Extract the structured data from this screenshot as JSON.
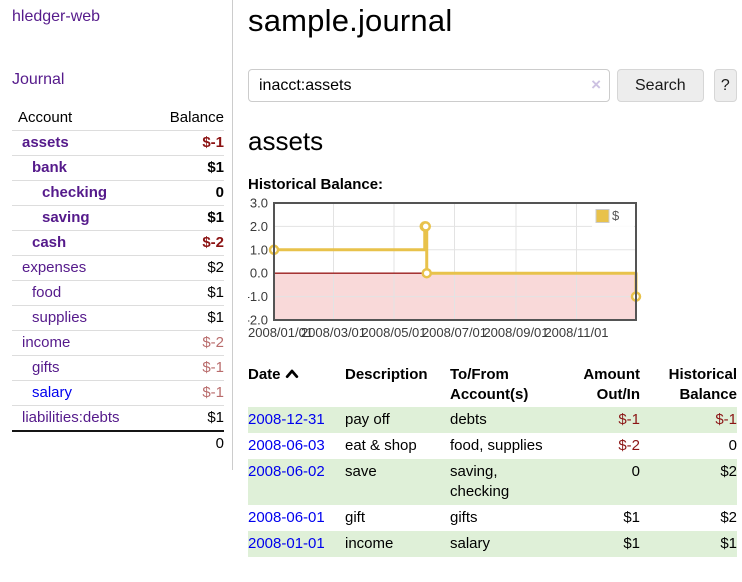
{
  "app": {
    "brand": "hledger-web"
  },
  "sidebar": {
    "journal_link": "Journal",
    "accounts_table": {
      "headers": {
        "account": "Account",
        "balance": "Balance"
      },
      "rows": [
        {
          "name": "assets",
          "depth": 1,
          "balance": "$-1",
          "bold": true,
          "balance_style": "neg-strong",
          "link_color": "purple"
        },
        {
          "name": "bank",
          "depth": 2,
          "balance": "$1",
          "bold": true,
          "balance_style": "pos",
          "link_color": "purple"
        },
        {
          "name": "checking",
          "depth": 3,
          "balance": "0",
          "bold": true,
          "balance_style": "pos",
          "link_color": "purple"
        },
        {
          "name": "saving",
          "depth": 3,
          "balance": "$1",
          "bold": true,
          "balance_style": "pos",
          "link_color": "purple"
        },
        {
          "name": "cash",
          "depth": 2,
          "balance": "$-2",
          "bold": true,
          "balance_style": "neg-strong",
          "link_color": "purple"
        },
        {
          "name": "expenses",
          "depth": 1,
          "balance": "$2",
          "bold": false,
          "balance_style": "pos",
          "link_color": "purple"
        },
        {
          "name": "food",
          "depth": 2,
          "balance": "$1",
          "bold": false,
          "balance_style": "pos",
          "link_color": "purple"
        },
        {
          "name": "supplies",
          "depth": 2,
          "balance": "$1",
          "bold": false,
          "balance_style": "pos",
          "link_color": "purple"
        },
        {
          "name": "income",
          "depth": 1,
          "balance": "$-2",
          "bold": false,
          "balance_style": "neg-dim",
          "link_color": "purple"
        },
        {
          "name": "gifts",
          "depth": 2,
          "balance": "$-1",
          "bold": false,
          "balance_style": "neg-dim",
          "link_color": "purple"
        },
        {
          "name": "salary",
          "depth": 2,
          "balance": "$-1",
          "bold": false,
          "balance_style": "neg-dim",
          "link_color": "blue"
        },
        {
          "name": "liabilities:debts",
          "depth": 1,
          "balance": "$1",
          "bold": false,
          "balance_style": "pos",
          "link_color": "purple"
        }
      ],
      "total": "0"
    }
  },
  "header": {
    "title": "sample.journal"
  },
  "search": {
    "value": "inacct:assets",
    "clear_icon": "×",
    "button": "Search",
    "help_button": "?"
  },
  "account_page": {
    "heading": "assets",
    "chart_label": "Historical Balance:"
  },
  "icons": {
    "clear_search": "x-mark",
    "sort_ascending": "chevron-up"
  },
  "chart_data": {
    "type": "line",
    "title": "Historical Balance:",
    "steps": true,
    "series": [
      {
        "name": "$",
        "color": "#e8c24b",
        "points": [
          [
            "2008-01-01",
            1
          ],
          [
            "2008-06-01",
            2
          ],
          [
            "2008-06-02",
            2
          ],
          [
            "2008-06-03",
            0
          ],
          [
            "2008-12-31",
            -1
          ]
        ]
      }
    ],
    "x_ticks": [
      {
        "date": "2008-01-01",
        "label": "2008/01/01"
      },
      {
        "date": "2008-03-01",
        "label": "2008/03/01"
      },
      {
        "date": "2008-05-01",
        "label": "2008/05/01"
      },
      {
        "date": "2008-07-01",
        "label": "2008/07/01"
      },
      {
        "date": "2008-09-01",
        "label": "2008/09/01"
      },
      {
        "date": "2008-11-01",
        "label": "2008/11/01"
      }
    ],
    "y_ticks": [
      {
        "v": 3,
        "label": "3.0"
      },
      {
        "v": 2,
        "label": "2.0"
      },
      {
        "v": 1,
        "label": "1.0"
      },
      {
        "v": 0,
        "label": "0.0"
      },
      {
        "v": -1,
        "label": "-1.0"
      },
      {
        "v": -2,
        "label": "-2.0"
      }
    ],
    "ylim": [
      -2,
      3
    ],
    "xrange": [
      "2008-01-01",
      "2008-12-31"
    ],
    "grid": true,
    "legend": {
      "label": "$",
      "position": "top-right"
    },
    "zero_line_color": "#9b1c1c",
    "negative_fill": "#f9d9d9"
  },
  "register_table": {
    "headers": {
      "date": "Date",
      "description": "Description",
      "accounts": "To/From Account(s)",
      "amount": "Amount Out/In",
      "balance": "Historical Balance"
    },
    "rows": [
      {
        "date": "2008-12-31",
        "description": "pay off",
        "accounts": "debts",
        "amount": "$-1",
        "amount_style": "neg",
        "balance": "$-1",
        "balance_style": "neg"
      },
      {
        "date": "2008-06-03",
        "description": "eat & shop",
        "accounts": "food, supplies",
        "amount": "$-2",
        "amount_style": "neg",
        "balance": "0",
        "balance_style": "pos"
      },
      {
        "date": "2008-06-02",
        "description": "save",
        "accounts": "saving, checking",
        "amount": "0",
        "amount_style": "pos",
        "balance": "$2",
        "balance_style": "pos"
      },
      {
        "date": "2008-06-01",
        "description": "gift",
        "accounts": "gifts",
        "amount": "$1",
        "amount_style": "pos",
        "balance": "$2",
        "balance_style": "pos"
      },
      {
        "date": "2008-01-01",
        "description": "income",
        "accounts": "salary",
        "amount": "$1",
        "amount_style": "pos",
        "balance": "$1",
        "balance_style": "pos"
      }
    ]
  }
}
